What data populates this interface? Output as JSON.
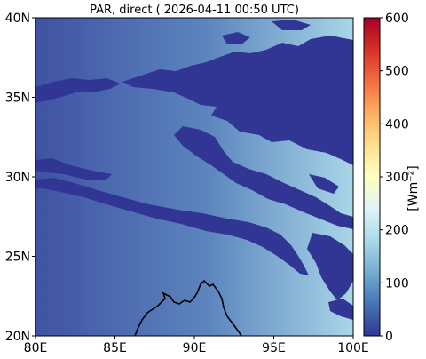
{
  "title": "PAR, direct ( 2026-04-11 00:50 UTC)",
  "map": {
    "lon_range": [
      80,
      100
    ],
    "lat_range": [
      20,
      40
    ],
    "x_ticks": [
      "80E",
      "85E",
      "90E",
      "95E",
      "100E"
    ],
    "y_ticks": [
      "20N",
      "25N",
      "30N",
      "35N",
      "40N"
    ]
  },
  "colorbar": {
    "label": "[Wm⁻²]",
    "range": [
      0,
      600
    ],
    "ticks": [
      "0",
      "100",
      "200",
      "300",
      "400",
      "500",
      "600"
    ],
    "colormap": "RdYlBu_r",
    "colors": [
      "#313695",
      "#4575b4",
      "#74add1",
      "#abd9e9",
      "#e0f3f8",
      "#ffffbf",
      "#fee090",
      "#fdae61",
      "#f46d43",
      "#d73027",
      "#a50026"
    ]
  },
  "field": {
    "background_west_color": "#3f52a3",
    "background_east_color": "#a9d6e8",
    "cloud_color": "#313695",
    "coastline_color": "#000000"
  }
}
